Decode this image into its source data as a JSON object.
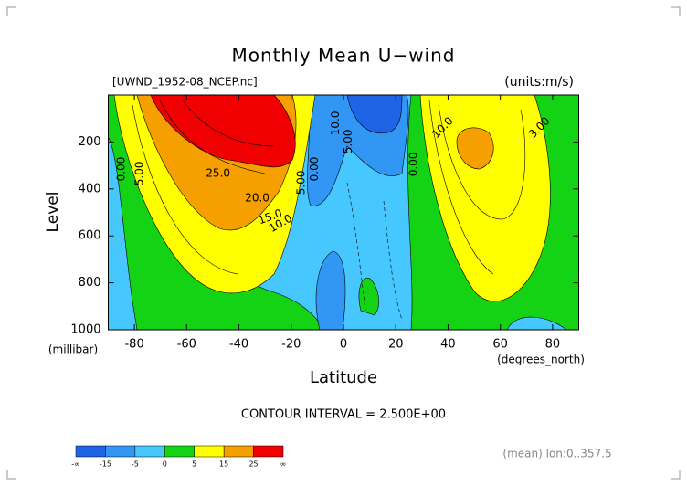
{
  "chart_data": {
    "type": "contour",
    "title": "Monthly Mean U−wind",
    "dataset": "[UWND_1952-08_NCEP.nc]",
    "units": "(units:m/s)",
    "x_label": "Latitude",
    "x_units": "(degrees_north)",
    "y_label": "Level",
    "y_units": "(millibar)",
    "xlim": [
      -90,
      90
    ],
    "xticks": [
      -80,
      -60,
      -40,
      -20,
      0,
      20,
      40,
      60,
      80
    ],
    "ylim": [
      1000,
      0
    ],
    "yticks": [
      200,
      400,
      600,
      800,
      1000
    ],
    "contour_labels": [
      {
        "value": 0,
        "label": "0.00",
        "lat": -85,
        "level": 315
      },
      {
        "value": 5,
        "label": "5.00",
        "lat": -78,
        "level": 334
      },
      {
        "value": 25,
        "label": "25.0",
        "lat": -48,
        "level": 334
      },
      {
        "value": 20,
        "label": "20.0",
        "lat": -33,
        "level": 439
      },
      {
        "value": 15,
        "label": "15.0",
        "lat": -28,
        "level": 520
      },
      {
        "value": 10,
        "label": "10.0",
        "lat": -24,
        "level": 548
      },
      {
        "value": 5,
        "label": "5.00",
        "lat": -16,
        "level": 373
      },
      {
        "value": 0,
        "label": "0.00",
        "lat": -11,
        "level": 315
      },
      {
        "value": 10,
        "label": "10.0",
        "lat": -3,
        "level": 120
      },
      {
        "value": 5,
        "label": "5.00",
        "lat": 2,
        "level": 198
      },
      {
        "value": 0,
        "label": "0.00",
        "lat": 27,
        "level": 295
      },
      {
        "value": 10,
        "label": "10.0",
        "lat": 38,
        "level": 140
      },
      {
        "value": 3,
        "label": "3.00",
        "lat": 75,
        "level": 140
      }
    ],
    "contour_interval": "CONTOUR INTERVAL = 2.500E+00",
    "note": "(mean) lon:0..357.5",
    "colorbar": {
      "colors": [
        "#1e64e6",
        "#3296f5",
        "#46c8ff",
        "#14d214",
        "#ffff00",
        "#f5a000",
        "#f00000"
      ],
      "labels": [
        "-∞",
        -15,
        -5,
        0,
        5,
        15,
        25,
        "∞"
      ]
    }
  }
}
